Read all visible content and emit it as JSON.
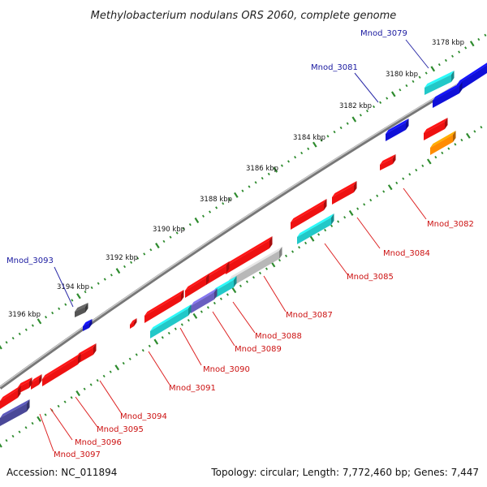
{
  "title": "Methylobacterium nodulans ORS 2060, complete genome",
  "accession": "Accession: NC_011894",
  "topology": "Topology: circular; Length: 7,772,460 bp; Genes: 7,447",
  "tick_labels": [
    "3178 kbp",
    "3180 kbp",
    "3182 kbp",
    "3184 kbp",
    "3186 kbp",
    "3188 kbp",
    "3190 kbp",
    "3192 kbp",
    "3194 kbp",
    "3196 kbp"
  ],
  "gene_labels_top": [
    "Mnod_3079",
    "Mnod_3081",
    "Mnod_3093"
  ],
  "gene_labels_bottom": [
    "Mnod_3082",
    "Mnod_3084",
    "Mnod_3085",
    "Mnod_3087",
    "Mnod_3088",
    "Mnod_3089",
    "Mnod_3090",
    "Mnod_3091",
    "Mnod_3094",
    "Mnod_3095",
    "Mnod_3096",
    "Mnod_3097"
  ],
  "colors": {
    "backbone": "#8c8c8c",
    "tick": "#2e8b2e",
    "cds_red": "#ee1111",
    "cds_cyan": "#22c8c8",
    "cds_blue": "#1010d8",
    "cds_purple": "#6a5fc0",
    "cds_navy": "#4a4898",
    "cds_orange": "#ff8c00",
    "cds_grey": "#b8b8b8",
    "cds_dark": "#555555",
    "label_top": "#1a1aa0",
    "label_bottom": "#cc1111"
  }
}
